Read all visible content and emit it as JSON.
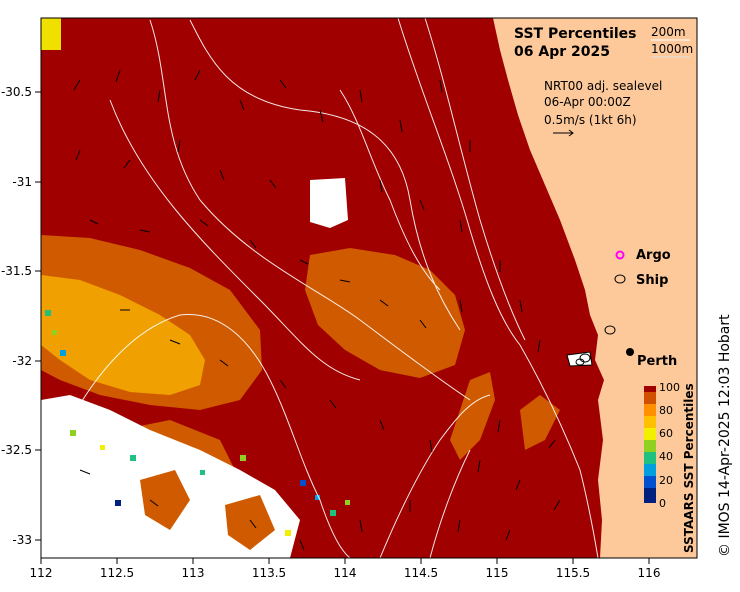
{
  "title": {
    "line1": "SST Percentiles",
    "line2": "06 Apr 2025"
  },
  "contour_legend": {
    "shallow": "200m",
    "deep": "1000m"
  },
  "currents_note": {
    "line1": "NRT00 adj. sealevel",
    "line2": "06-Apr 00:00Z",
    "line3": "0.5m/s (1kt 6h)"
  },
  "markers": {
    "argo_label": "Argo",
    "ship_label": "Ship",
    "city_label": "Perth",
    "argo_color": "#ff00ff"
  },
  "axes": {
    "x_ticks": [
      "112",
      "112.5",
      "113",
      "113.5",
      "114",
      "114.5",
      "115",
      "115.5",
      "116"
    ],
    "y_ticks": [
      "-30.5",
      "-31",
      "-31.5",
      "-32",
      "-32.5",
      "-33"
    ],
    "x_range": [
      112,
      116.3
    ],
    "y_range": [
      -33.1,
      -30.05
    ]
  },
  "colorbar": {
    "title": "SSTAARS SST Percentiles",
    "ticks": [
      "100",
      "80",
      "60",
      "40",
      "20",
      "0"
    ],
    "colors": [
      "#002080",
      "#0050d0",
      "#00a0e0",
      "#20c080",
      "#90d020",
      "#f0f000",
      "#ffc000",
      "#ff9000",
      "#d05000",
      "#a00000"
    ]
  },
  "colors": {
    "land": "#fdc99a",
    "sea_main": "#a00000",
    "sea_warm_orange": "#d05a00",
    "sea_amber": "#f0a000",
    "no_data": "#ffffff"
  },
  "credit": "© IMOS 14-Apr-2025 12:03 Hobart"
}
